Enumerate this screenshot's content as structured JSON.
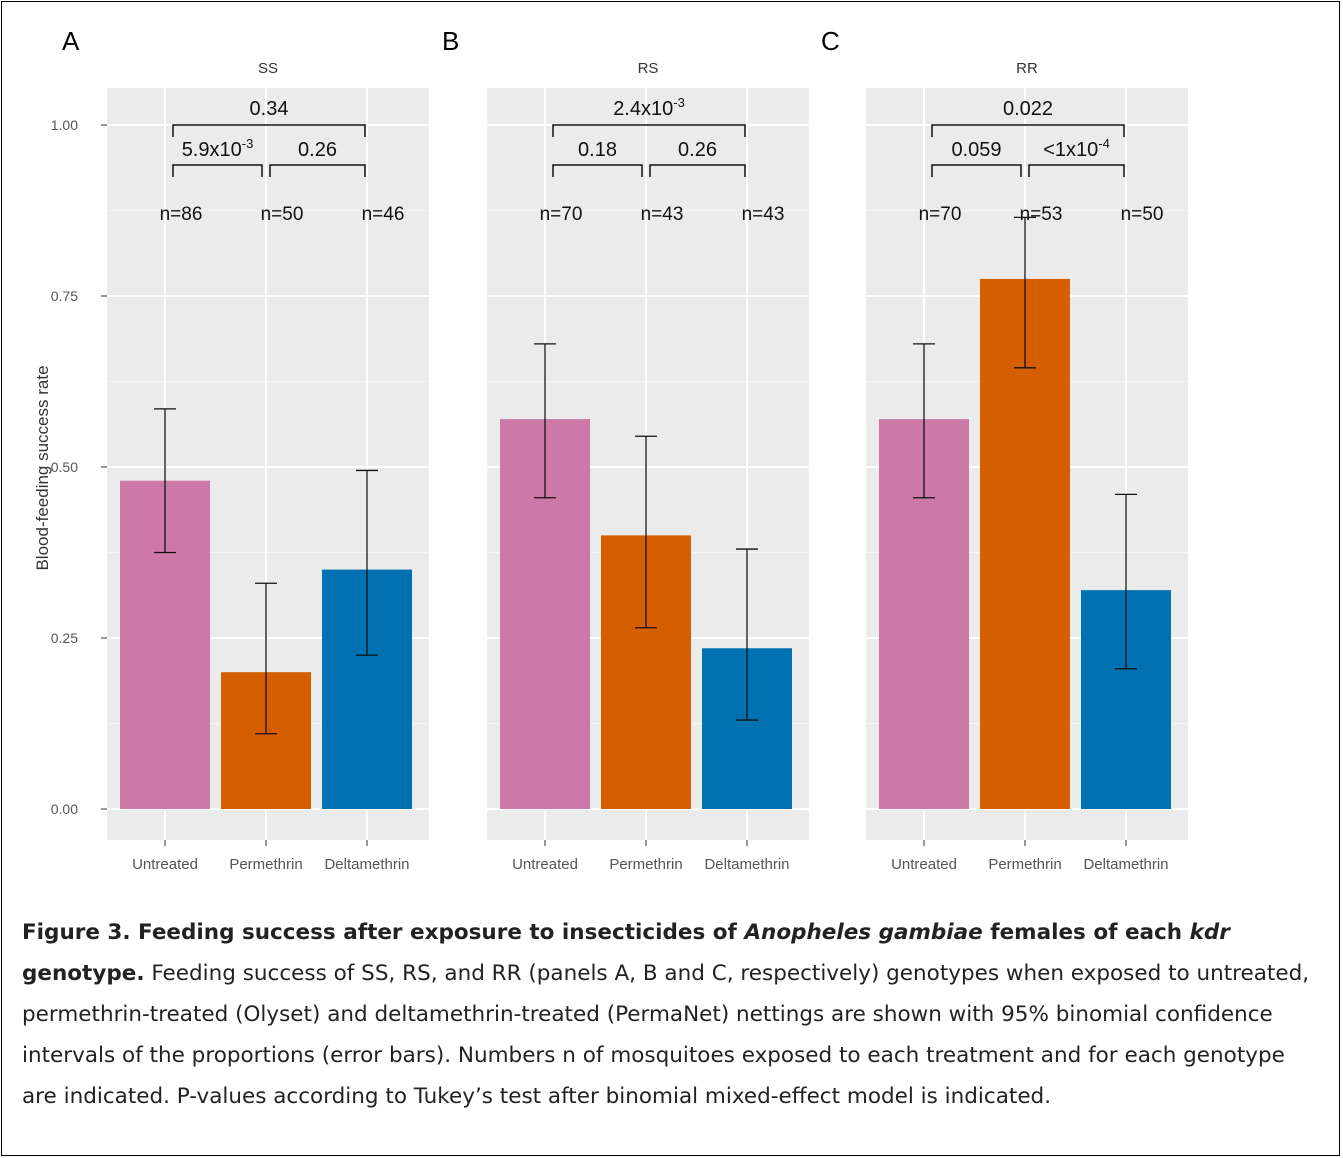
{
  "chart_data": {
    "type": "bar",
    "ylabel": "Blood-feeding success rate",
    "ylim": [
      0,
      1.05
    ],
    "yticks": [
      "0.00",
      "0.25",
      "0.50",
      "0.75",
      "1.00"
    ],
    "ytick_values": [
      0,
      0.25,
      0.5,
      0.75,
      1.0
    ],
    "categories": [
      "Untreated",
      "Permethrin",
      "Deltamethrin"
    ],
    "colors": [
      "#cc79a7",
      "#d55e00",
      "#0072b2"
    ],
    "panels": [
      {
        "letter": "A",
        "title": "SS",
        "values": [
          0.48,
          0.2,
          0.35
        ],
        "ci_low": [
          0.375,
          0.11,
          0.225
        ],
        "ci_high": [
          0.585,
          0.33,
          0.495
        ],
        "n_labels": [
          "n=86",
          "n=50",
          "n=46"
        ],
        "pvalues": {
          "top": "0.34",
          "left": "5.9x10-3",
          "right": "0.26"
        },
        "pvalues_display": {
          "top": [
            "0.34",
            ""
          ],
          "left": [
            "5.9x10",
            "-3"
          ],
          "right": [
            "0.26",
            ""
          ]
        }
      },
      {
        "letter": "B",
        "title": "RS",
        "values": [
          0.57,
          0.4,
          0.235
        ],
        "ci_low": [
          0.455,
          0.265,
          0.13
        ],
        "ci_high": [
          0.68,
          0.545,
          0.38
        ],
        "n_labels": [
          "n=70",
          "n=43",
          "n=43"
        ],
        "pvalues": {
          "top": "2.4x10-3",
          "left": "0.18",
          "right": "0.26"
        },
        "pvalues_display": {
          "top": [
            "2.4x10",
            "-3"
          ],
          "left": [
            "0.18",
            ""
          ],
          "right": [
            "0.26",
            ""
          ]
        }
      },
      {
        "letter": "C",
        "title": "RR",
        "values": [
          0.57,
          0.775,
          0.32
        ],
        "ci_low": [
          0.455,
          0.645,
          0.205
        ],
        "ci_high": [
          0.68,
          0.865,
          0.46
        ],
        "n_labels": [
          "n=70",
          "n=53",
          "n=50"
        ],
        "pvalues": {
          "top": "0.022",
          "left": "0.059",
          "right": "<1x10-4"
        },
        "pvalues_display": {
          "top": [
            "0.022",
            ""
          ],
          "left": [
            "0.059",
            ""
          ],
          "right": [
            "<1x10",
            "-4"
          ]
        }
      }
    ],
    "grid": true
  },
  "caption": {
    "bold_1": "Figure 3. Feeding success after exposure to insecticides of ",
    "bold_italic_1": "Anopheles gambiae",
    "bold_2": " females of each ",
    "bold_italic_2": "kdr",
    "bold_3": " genotype.",
    "text": " Feeding success of SS, RS, and RR (panels A, B and C, respectively) genotypes when exposed to untreated, permethrin-treated (Olyset) and deltamethrin-treated (PermaNet) nettings are shown with 95% binomial confidence intervals of the proportions (error bars). Numbers n of mosquitoes exposed to each treatment and for each genotype are indicated. P-values according to Tukey’s test after binomial mixed-effect model is indicated."
  }
}
